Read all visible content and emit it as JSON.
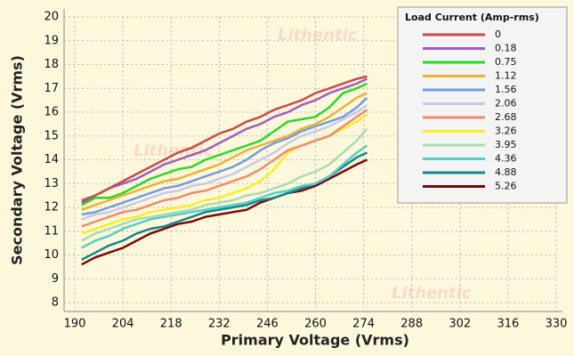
{
  "chart_data": {
    "type": "line",
    "watermark": "Lithentic",
    "xlabel": "Primary Voltage (Vrms)",
    "ylabel": "Secondary Voltage (Vrms)",
    "legend_title": "Load Current (Amp-rms)",
    "legend_position": "upper right",
    "grid": true,
    "xlim": [
      190,
      330
    ],
    "xticks": [
      190,
      204,
      218,
      232,
      246,
      260,
      274,
      288,
      302,
      316,
      330
    ],
    "ylim": [
      8,
      20
    ],
    "yticks": [
      8,
      9,
      10,
      11,
      12,
      13,
      14,
      15,
      16,
      17,
      18,
      19,
      20
    ],
    "x": [
      192,
      196,
      200,
      204,
      208,
      212,
      216,
      220,
      224,
      228,
      232,
      236,
      240,
      244,
      248,
      252,
      256,
      260,
      264,
      268,
      272,
      275
    ],
    "series": [
      {
        "name": "0",
        "color": "#cd4a4a",
        "values": [
          12.2,
          12.5,
          12.8,
          13.1,
          13.4,
          13.7,
          14.0,
          14.3,
          14.5,
          14.8,
          15.1,
          15.3,
          15.6,
          15.8,
          16.1,
          16.3,
          16.5,
          16.8,
          17.0,
          17.2,
          17.4,
          17.5
        ]
      },
      {
        "name": "0.18",
        "color": "#a05cc0",
        "values": [
          12.3,
          12.5,
          12.8,
          13.0,
          13.2,
          13.5,
          13.8,
          14.0,
          14.2,
          14.4,
          14.7,
          15.0,
          15.3,
          15.5,
          15.8,
          16.0,
          16.3,
          16.5,
          16.8,
          17.0,
          17.2,
          17.4
        ]
      },
      {
        "name": "0.75",
        "color": "#22dd22",
        "values": [
          12.1,
          12.4,
          12.4,
          12.6,
          12.9,
          13.2,
          13.4,
          13.6,
          13.7,
          14.0,
          14.2,
          14.4,
          14.6,
          14.8,
          15.2,
          15.6,
          15.7,
          15.8,
          16.2,
          16.8,
          17.0,
          17.2
        ]
      },
      {
        "name": "1.12",
        "color": "#f0b030",
        "values": [
          11.9,
          12.1,
          12.3,
          12.5,
          12.7,
          12.9,
          13.1,
          13.2,
          13.4,
          13.6,
          13.8,
          14.1,
          14.4,
          14.6,
          14.8,
          15.0,
          15.3,
          15.5,
          15.8,
          16.2,
          16.6,
          16.8
        ]
      },
      {
        "name": "1.56",
        "color": "#6f9de0",
        "values": [
          11.7,
          11.8,
          12.0,
          12.2,
          12.4,
          12.6,
          12.8,
          12.9,
          13.1,
          13.3,
          13.5,
          13.7,
          14.0,
          14.4,
          14.7,
          14.9,
          15.2,
          15.4,
          15.6,
          15.8,
          16.2,
          16.6
        ]
      },
      {
        "name": "2.06",
        "color": "#c8c8f0",
        "values": [
          11.5,
          11.7,
          11.8,
          12.0,
          12.2,
          12.4,
          12.6,
          12.7,
          12.9,
          13.0,
          13.2,
          13.4,
          13.7,
          14.0,
          14.3,
          14.7,
          15.0,
          15.2,
          15.4,
          15.7,
          16.0,
          16.3
        ]
      },
      {
        "name": "2.68",
        "color": "#f08a70",
        "values": [
          11.2,
          11.4,
          11.6,
          11.8,
          11.9,
          12.1,
          12.3,
          12.4,
          12.6,
          12.7,
          12.9,
          13.1,
          13.3,
          13.6,
          14.0,
          14.4,
          14.6,
          14.8,
          15.0,
          15.4,
          15.8,
          16.1
        ]
      },
      {
        "name": "3.26",
        "color": "#f5f020",
        "values": [
          10.9,
          11.1,
          11.3,
          11.5,
          11.6,
          11.8,
          11.9,
          12.0,
          12.1,
          12.3,
          12.4,
          12.6,
          12.8,
          13.1,
          13.6,
          14.3,
          14.6,
          14.8,
          15.0,
          15.3,
          15.6,
          15.9
        ]
      },
      {
        "name": "3.95",
        "color": "#a8dcb0",
        "values": [
          10.6,
          10.9,
          11.1,
          11.3,
          11.5,
          11.6,
          11.7,
          11.8,
          11.9,
          12.1,
          12.2,
          12.3,
          12.5,
          12.6,
          12.8,
          13.0,
          13.3,
          13.5,
          13.8,
          14.3,
          14.8,
          15.3
        ]
      },
      {
        "name": "4.36",
        "color": "#50d0c8",
        "values": [
          10.3,
          10.6,
          10.8,
          11.1,
          11.3,
          11.5,
          11.6,
          11.7,
          11.8,
          11.9,
          12.0,
          12.1,
          12.2,
          12.4,
          12.6,
          12.7,
          12.9,
          13.0,
          13.3,
          13.8,
          14.3,
          14.6
        ]
      },
      {
        "name": "4.88",
        "color": "#108888",
        "values": [
          9.8,
          10.1,
          10.4,
          10.6,
          10.9,
          11.1,
          11.2,
          11.4,
          11.6,
          11.8,
          11.9,
          12.0,
          12.1,
          12.3,
          12.4,
          12.6,
          12.8,
          13.0,
          13.3,
          13.7,
          14.1,
          14.3
        ]
      },
      {
        "name": "5.26",
        "color": "#7a0a0a",
        "values": [
          9.6,
          9.9,
          10.1,
          10.3,
          10.6,
          10.9,
          11.1,
          11.3,
          11.4,
          11.6,
          11.7,
          11.8,
          11.9,
          12.2,
          12.4,
          12.6,
          12.7,
          12.9,
          13.2,
          13.5,
          13.8,
          14.0
        ]
      }
    ]
  }
}
